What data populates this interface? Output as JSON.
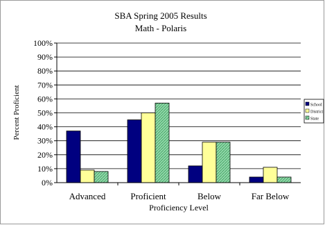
{
  "chart_data": {
    "type": "bar",
    "title": "SBA Spring 2005 Results",
    "subtitle": "Math - Polaris",
    "xlabel": "Proficiency Level",
    "ylabel": "Percent Proficient",
    "categories": [
      "Advanced",
      "Proficient",
      "Below",
      "Far Below"
    ],
    "ylim": [
      0,
      100
    ],
    "yticks": [
      "0%",
      "10%",
      "20%",
      "30%",
      "40%",
      "50%",
      "60%",
      "70%",
      "80%",
      "90%",
      "100%"
    ],
    "grid": true,
    "legend_position": "right",
    "series": [
      {
        "name": "School",
        "values": [
          37,
          45,
          12,
          4
        ],
        "color": "#000080",
        "pattern": "solid"
      },
      {
        "name": "District",
        "values": [
          9,
          50,
          29,
          11
        ],
        "color": "#ffff99",
        "pattern": "solid"
      },
      {
        "name": "State",
        "values": [
          8,
          57,
          29,
          4
        ],
        "color": "#8fd8a8",
        "pattern": "hatch"
      }
    ]
  }
}
